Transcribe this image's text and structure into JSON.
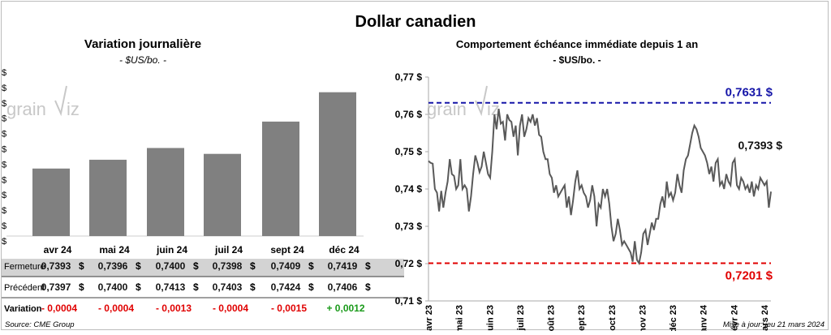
{
  "page": {
    "title": "Dollar canadien",
    "source": "Source: CME Group",
    "updated": "Mise à jour: jeu 21 mars 2024",
    "watermark_left": "grain",
    "watermark_right": "iz"
  },
  "chart_data": [
    {
      "type": "bar",
      "title": "Variation  journalière",
      "subtitle": "- $US/bo. -",
      "categories": [
        "avr 24",
        "mai 24",
        "juin 24",
        "juil 24",
        "sept 24",
        "déc 24"
      ],
      "values": [
        0.7393,
        0.7396,
        0.74,
        0.7398,
        0.7409,
        0.7419
      ],
      "bar_color": "#808080",
      "ytick_labels": [
        "$",
        "$",
        "$",
        "$",
        "$",
        "$",
        "$",
        "$",
        "$",
        "$",
        "$",
        "$"
      ],
      "table": {
        "rows": [
          {
            "label": "Fermeture",
            "values": [
              "0,7393",
              "0,7396",
              "0,7400",
              "0,7398",
              "0,7409",
              "0,7419"
            ],
            "unit": "$"
          },
          {
            "label": "Précédent",
            "values": [
              "0,7397",
              "0,7400",
              "0,7413",
              "0,7403",
              "0,7424",
              "0,7406"
            ],
            "unit": "$"
          },
          {
            "label": "Variation",
            "values": [
              "- 0,0004",
              "- 0,0004",
              "- 0,0013",
              "- 0,0004",
              "- 0,0015",
              "+ 0,0012"
            ]
          }
        ],
        "negative_color": "#e00000",
        "positive_color": "#1a9a1a"
      }
    },
    {
      "type": "line",
      "title": "Comportement échéance immédiate depuis 1 an",
      "subtitle": "- $US/bo. -",
      "ylim": [
        0.71,
        0.77
      ],
      "yticks": [
        0.71,
        0.72,
        0.73,
        0.74,
        0.75,
        0.76,
        0.77
      ],
      "ytick_labels": [
        "0,71 $",
        "0,72 $",
        "0,73 $",
        "0,74 $",
        "0,75 $",
        "0,76 $",
        "0,77 $"
      ],
      "xtick_labels": [
        "avr 23",
        "mai 23",
        "juin 23",
        "juil 23",
        "août 23",
        "sept 23",
        "oct 23",
        "nov 23",
        "déc 23",
        "janv 24",
        "févr 24",
        "mars 24"
      ],
      "series": [
        {
          "color": "#595959",
          "values": [
            0.7475,
            0.747,
            0.7468,
            0.74,
            0.739,
            0.734,
            0.7395,
            0.735,
            0.739,
            0.742,
            0.748,
            0.744,
            0.7435,
            0.74,
            0.741,
            0.748,
            0.74,
            0.741,
            0.74,
            0.734,
            0.738,
            0.744,
            0.749,
            0.747,
            0.7445,
            0.746,
            0.75,
            0.747,
            0.744,
            0.743,
            0.75,
            0.76,
            0.756,
            0.7615,
            0.7575,
            0.758,
            0.753,
            0.76,
            0.7585,
            0.758,
            0.754,
            0.757,
            0.749,
            0.757,
            0.76,
            0.754,
            0.756,
            0.759,
            0.758,
            0.76,
            0.757,
            0.759,
            0.7545,
            0.754,
            0.75,
            0.748,
            0.748,
            0.744,
            0.743,
            0.739,
            0.741,
            0.738,
            0.739,
            0.74,
            0.741,
            0.735,
            0.738,
            0.733,
            0.737,
            0.742,
            0.745,
            0.74,
            0.741,
            0.739,
            0.738,
            0.735,
            0.737,
            0.741,
            0.738,
            0.73,
            0.736,
            0.735,
            0.74,
            0.738,
            0.74,
            0.736,
            0.73,
            0.726,
            0.728,
            0.732,
            0.729,
            0.725,
            0.726,
            0.725,
            0.724,
            0.723,
            0.7205,
            0.726,
            0.721,
            0.7201,
            0.723,
            0.728,
            0.729,
            0.725,
            0.728,
            0.731,
            0.729,
            0.732,
            0.732,
            0.736,
            0.738,
            0.735,
            0.742,
            0.738,
            0.739,
            0.737,
            0.739,
            0.744,
            0.741,
            0.739,
            0.745,
            0.748,
            0.749,
            0.752,
            0.755,
            0.757,
            0.756,
            0.754,
            0.751,
            0.75,
            0.749,
            0.747,
            0.744,
            0.746,
            0.742,
            0.747,
            0.748,
            0.741,
            0.742,
            0.74,
            0.744,
            0.742,
            0.741,
            0.747,
            0.748,
            0.741,
            0.74,
            0.743,
            0.742,
            0.74,
            0.741,
            0.739,
            0.742,
            0.738,
            0.741,
            0.74,
            0.743,
            0.742,
            0.741,
            0.742,
            0.735,
            0.7393
          ]
        }
      ],
      "annotations": [
        {
          "label": "0,7631 $",
          "value": 0.7631,
          "color": "#1515a8",
          "style": "dashed"
        },
        {
          "label": "0,7201 $",
          "value": 0.7201,
          "color": "#e00000",
          "style": "dashed"
        },
        {
          "label": "0,7393 $",
          "value": 0.7393,
          "color": "#111111"
        }
      ]
    }
  ]
}
